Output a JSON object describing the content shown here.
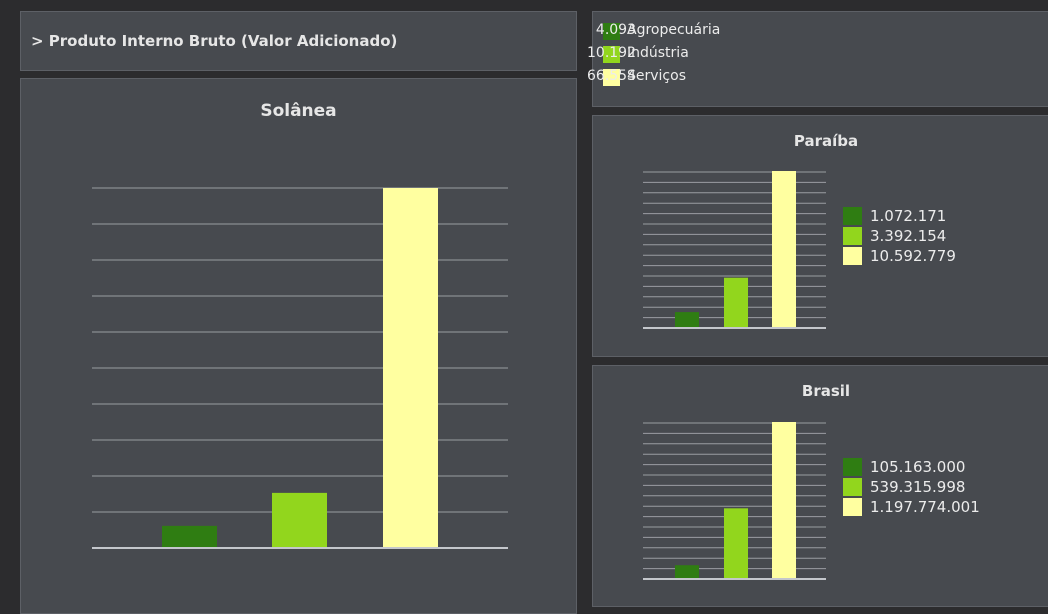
{
  "header": {
    "title": "> Produto Interno Bruto (Valor Adicionado)"
  },
  "colors": {
    "agropecuaria": "#2f7d12",
    "industria": "#92d61d",
    "servicos": "#ffffa0",
    "gridline": "#9a9da2",
    "baseline": "#c4c7cc"
  },
  "legend": {
    "items": [
      {
        "label": "Agropecuária",
        "value": "4.093"
      },
      {
        "label": "Indústria",
        "value": "10.192"
      },
      {
        "label": "Serviços",
        "value": "66.554"
      }
    ]
  },
  "chart_data": [
    {
      "type": "bar",
      "title": "Solânea",
      "categories": [
        "Agropecuária",
        "Indústria",
        "Serviços"
      ],
      "values": [
        4093,
        10192,
        66554
      ],
      "ylim": [
        0,
        66554
      ],
      "grid": true
    },
    {
      "type": "bar",
      "title": "Paraíba",
      "categories": [
        "Agropecuária",
        "Indústria",
        "Serviços"
      ],
      "values": [
        1072171,
        3392154,
        10592779
      ],
      "value_labels": [
        "1.072.171",
        "3.392.154",
        "10.592.779"
      ],
      "ylim": [
        0,
        10592779
      ],
      "grid": true,
      "legend": "right"
    },
    {
      "type": "bar",
      "title": "Brasil",
      "categories": [
        "Agropecuária",
        "Indústria",
        "Serviços"
      ],
      "values": [
        105163000,
        539315998,
        1197774001
      ],
      "value_labels": [
        "105.163.000",
        "539.315.998",
        "1.197.774.001"
      ],
      "ylim": [
        0,
        1197774001
      ],
      "grid": true,
      "legend": "right"
    }
  ]
}
